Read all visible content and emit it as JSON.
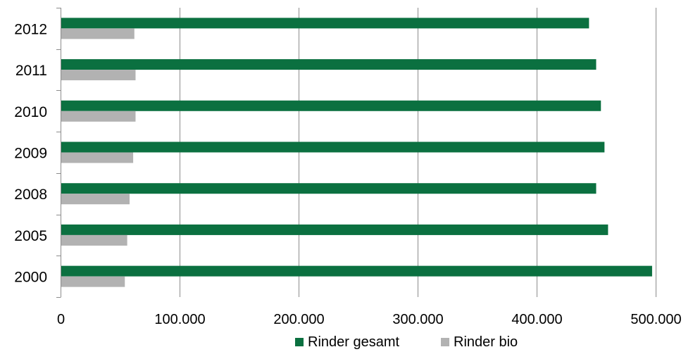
{
  "chart_data": {
    "type": "bar",
    "orientation": "horizontal",
    "categories": [
      "2012",
      "2011",
      "2010",
      "2009",
      "2008",
      "2005",
      "2000"
    ],
    "series": [
      {
        "name": "Rinder gesamt",
        "color": "#0b7040",
        "values": [
          444000,
          450000,
          454000,
          457000,
          450000,
          460000,
          497000
        ]
      },
      {
        "name": "Rinder bio",
        "color": "#b2b2b2",
        "values": [
          62000,
          63000,
          63000,
          61000,
          58000,
          56000,
          54000
        ]
      }
    ],
    "xlim": [
      0,
      500000
    ],
    "xticks": [
      0,
      100000,
      200000,
      300000,
      400000,
      500000
    ],
    "xtick_labels": [
      "0",
      "100.000",
      "200.000",
      "300.000",
      "400.000",
      "500.000"
    ],
    "grid": "vertical",
    "legend_position": "bottom"
  }
}
